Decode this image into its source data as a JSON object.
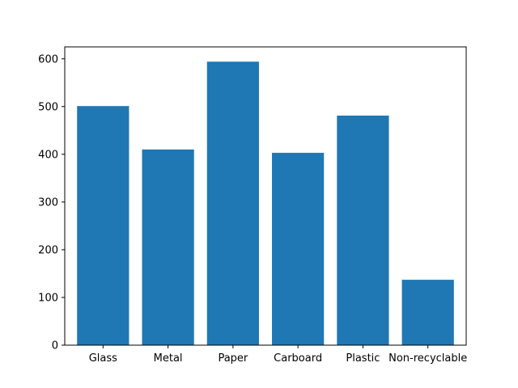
{
  "chart_data": {
    "type": "bar",
    "categories": [
      "Glass",
      "Metal",
      "Paper",
      "Carboard",
      "Plastic",
      "Non-recyclable"
    ],
    "values": [
      501,
      410,
      594,
      403,
      481,
      137
    ],
    "ylim": [
      0,
      625
    ],
    "yticks": [
      0,
      100,
      200,
      300,
      400,
      500,
      600
    ],
    "bar_color": "#1f77b4",
    "grid": false,
    "legend": "none"
  }
}
